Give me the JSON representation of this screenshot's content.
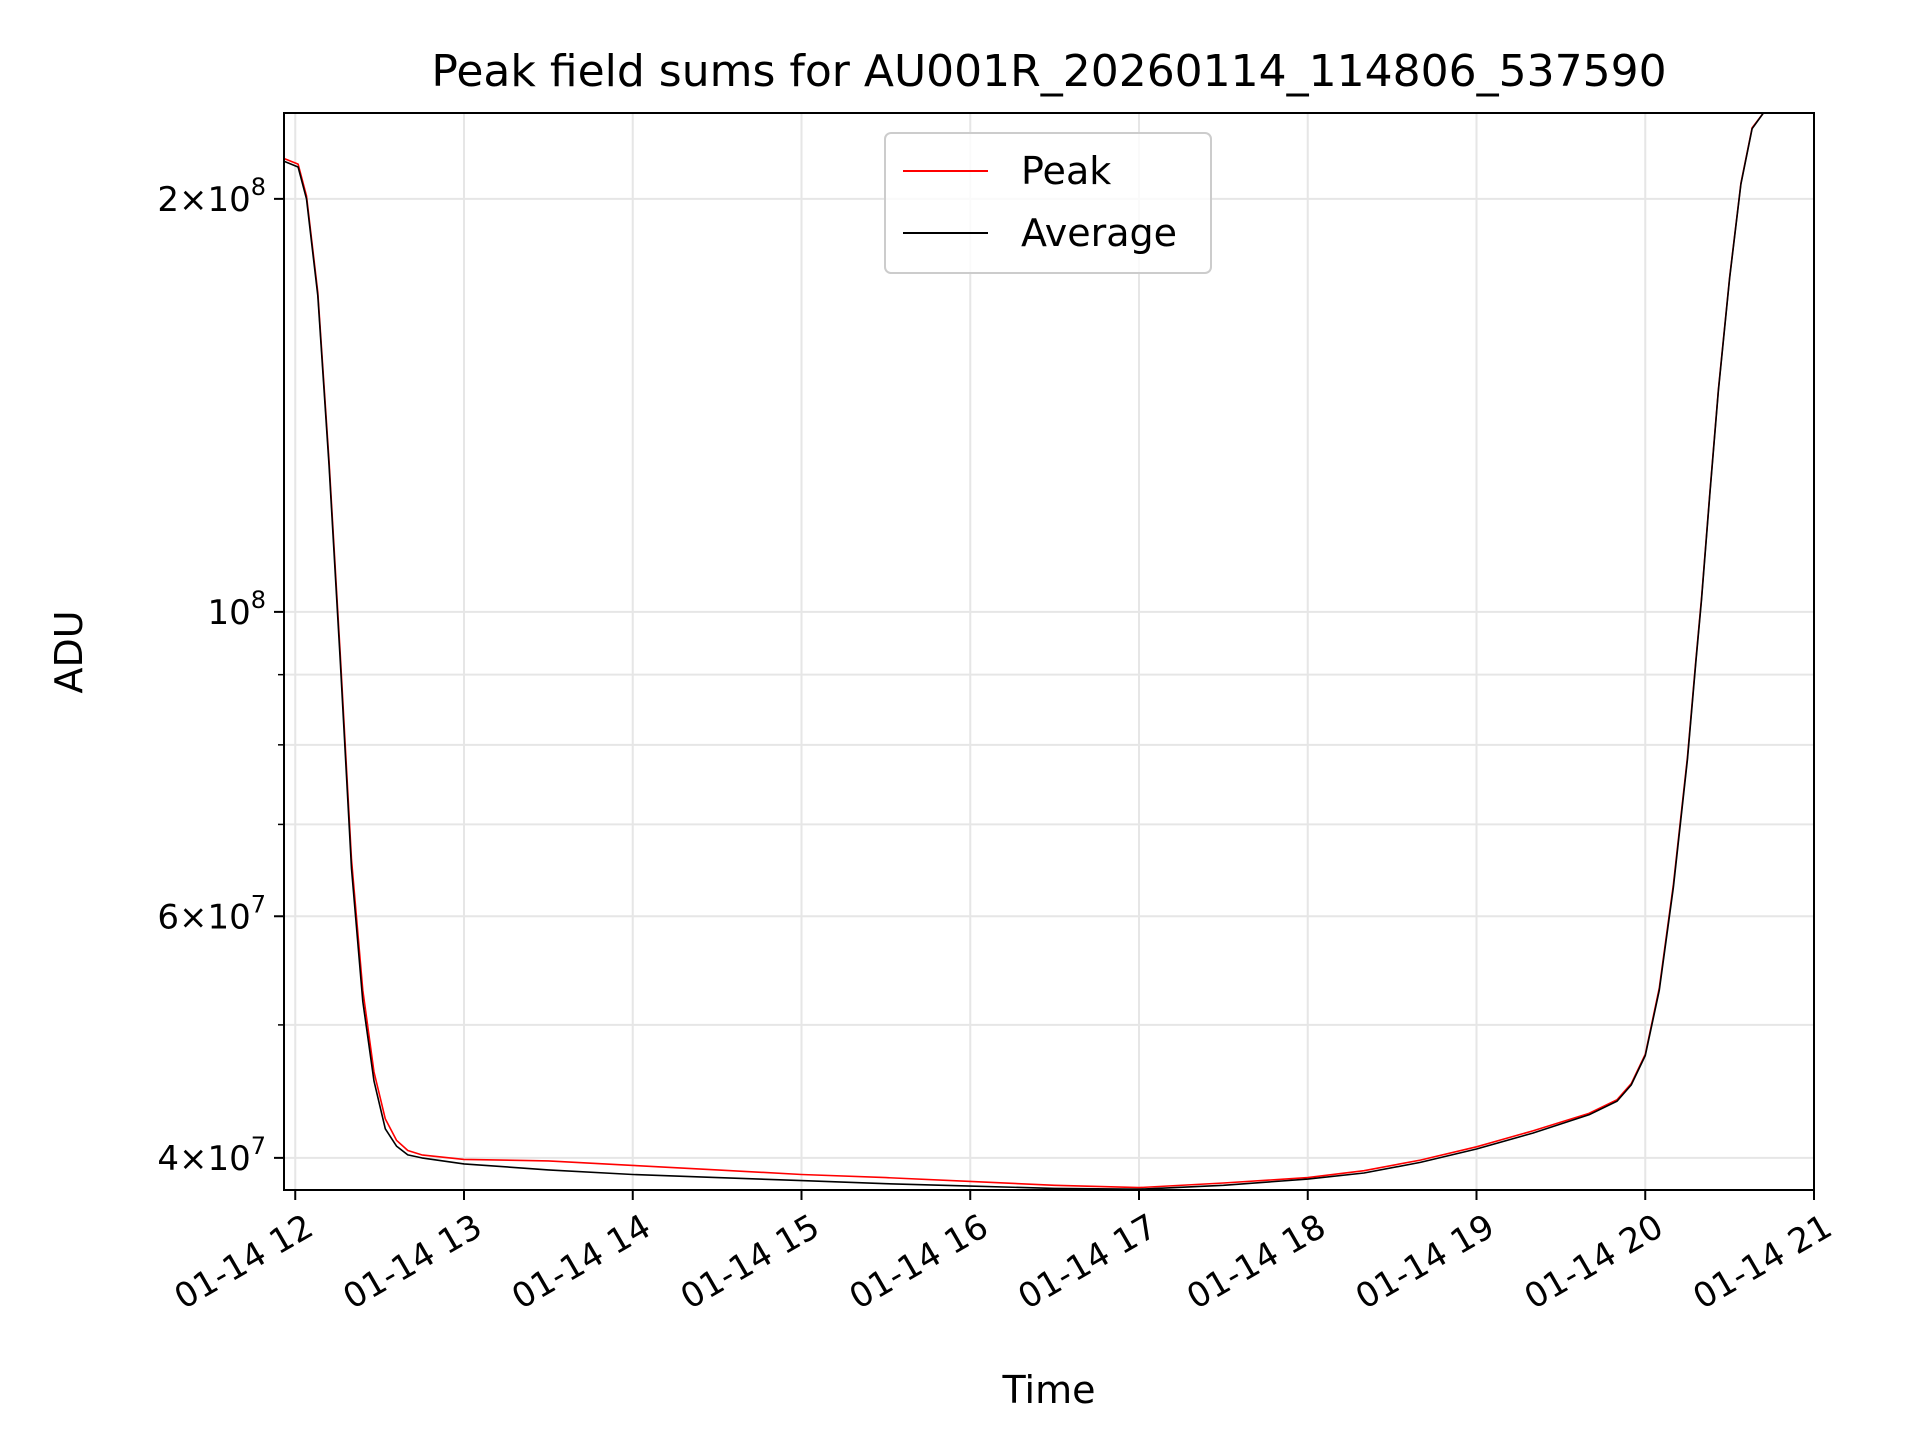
{
  "chart_data": {
    "type": "line",
    "title": "Peak field sums for AU001R_20260114_114806_537590",
    "xlabel": "Time",
    "ylabel": "ADU",
    "yscale": "log",
    "grid": true,
    "legend": {
      "placement": "upper center",
      "entries": [
        "Peak",
        "Average"
      ]
    },
    "xlim": [
      "2026-01-14 11:56",
      "2026-01-14 21:00"
    ],
    "ylim": [
      37900000,
      231000000
    ],
    "x_tick_labels": [
      "01-14 12",
      "01-14 13",
      "01-14 14",
      "01-14 15",
      "01-14 16",
      "01-14 17",
      "01-14 18",
      "01-14 19",
      "01-14 20",
      "01-14 21"
    ],
    "x_tick_values": [
      "2026-01-14 12:00",
      "2026-01-14 13:00",
      "2026-01-14 14:00",
      "2026-01-14 15:00",
      "2026-01-14 16:00",
      "2026-01-14 17:00",
      "2026-01-14 18:00",
      "2026-01-14 19:00",
      "2026-01-14 20:00",
      "2026-01-14 21:00"
    ],
    "y_tick_labels": [
      {
        "value": 40000000,
        "mant": "4",
        "exp": "7"
      },
      {
        "value": 60000000,
        "mant": "6",
        "exp": "7"
      },
      {
        "value": 100000000,
        "mant": "",
        "exp": "8"
      },
      {
        "value": 200000000,
        "mant": "2",
        "exp": "8"
      }
    ],
    "y_minor_ticks": [
      50000000,
      70000000,
      80000000,
      90000000
    ],
    "colors": {
      "Peak": "#ff0000",
      "Average": "#000000"
    },
    "series": [
      {
        "name": "Average",
        "x": [
          "2026-01-14 11:56",
          "2026-01-14 12:01",
          "2026-01-14 12:04",
          "2026-01-14 12:08",
          "2026-01-14 12:12",
          "2026-01-14 12:16",
          "2026-01-14 12:20",
          "2026-01-14 12:24",
          "2026-01-14 12:28",
          "2026-01-14 12:32",
          "2026-01-14 12:36",
          "2026-01-14 12:40",
          "2026-01-14 12:45",
          "2026-01-14 13:00",
          "2026-01-14 13:30",
          "2026-01-14 14:00",
          "2026-01-14 14:30",
          "2026-01-14 15:00",
          "2026-01-14 15:30",
          "2026-01-14 16:00",
          "2026-01-14 16:30",
          "2026-01-14 17:00",
          "2026-01-14 17:30",
          "2026-01-14 18:00",
          "2026-01-14 18:20",
          "2026-01-14 18:40",
          "2026-01-14 19:00",
          "2026-01-14 19:20",
          "2026-01-14 19:40",
          "2026-01-14 19:50",
          "2026-01-14 19:55",
          "2026-01-14 20:00",
          "2026-01-14 20:05",
          "2026-01-14 20:10",
          "2026-01-14 20:15",
          "2026-01-14 20:18",
          "2026-01-14 20:20",
          "2026-01-14 20:23",
          "2026-01-14 20:26",
          "2026-01-14 20:30",
          "2026-01-14 20:34",
          "2026-01-14 20:38",
          "2026-01-14 20:42",
          "2026-01-14 20:46"
        ],
        "y": [
          213000000,
          211000000,
          200000000,
          170000000,
          128000000,
          92000000,
          65000000,
          52000000,
          45500000,
          42000000,
          40800000,
          40200000,
          40000000,
          39600000,
          39200000,
          38900000,
          38700000,
          38500000,
          38300000,
          38150000,
          38000000,
          37950000,
          38200000,
          38600000,
          39000000,
          39700000,
          40600000,
          41700000,
          43000000,
          44000000,
          45200000,
          47500000,
          53000000,
          63000000,
          78000000,
          92000000,
          102000000,
          122000000,
          145000000,
          175000000,
          205000000,
          225000000,
          231000000,
          231000000
        ]
      },
      {
        "name": "Peak",
        "x": [
          "2026-01-14 11:56",
          "2026-01-14 12:01",
          "2026-01-14 12:04",
          "2026-01-14 12:08",
          "2026-01-14 12:12",
          "2026-01-14 12:16",
          "2026-01-14 12:20",
          "2026-01-14 12:24",
          "2026-01-14 12:28",
          "2026-01-14 12:32",
          "2026-01-14 12:36",
          "2026-01-14 12:40",
          "2026-01-14 12:45",
          "2026-01-14 13:00",
          "2026-01-14 13:30",
          "2026-01-14 14:00",
          "2026-01-14 14:30",
          "2026-01-14 15:00",
          "2026-01-14 15:30",
          "2026-01-14 16:00",
          "2026-01-14 16:30",
          "2026-01-14 17:00",
          "2026-01-14 17:30",
          "2026-01-14 18:00",
          "2026-01-14 18:20",
          "2026-01-14 18:40",
          "2026-01-14 19:00",
          "2026-01-14 19:20",
          "2026-01-14 19:40",
          "2026-01-14 19:50",
          "2026-01-14 19:55",
          "2026-01-14 20:00",
          "2026-01-14 20:05",
          "2026-01-14 20:10",
          "2026-01-14 20:15",
          "2026-01-14 20:18",
          "2026-01-14 20:20",
          "2026-01-14 20:23",
          "2026-01-14 20:26",
          "2026-01-14 20:30",
          "2026-01-14 20:34",
          "2026-01-14 20:38",
          "2026-01-14 20:42",
          "2026-01-14 20:46"
        ],
        "y": [
          214000000,
          212000000,
          201000000,
          171000000,
          129000000,
          93000000,
          66000000,
          53000000,
          46200000,
          42700000,
          41200000,
          40500000,
          40200000,
          39900000,
          39800000,
          39500000,
          39200000,
          38900000,
          38700000,
          38450000,
          38200000,
          38050000,
          38350000,
          38700000,
          39150000,
          39850000,
          40750000,
          41850000,
          43100000,
          44100000,
          45300000,
          47600000,
          53200000,
          63300000,
          78300000,
          92300000,
          102300000,
          122300000,
          145300000,
          175300000,
          205300000,
          225300000,
          231000000,
          231000000
        ]
      }
    ]
  }
}
